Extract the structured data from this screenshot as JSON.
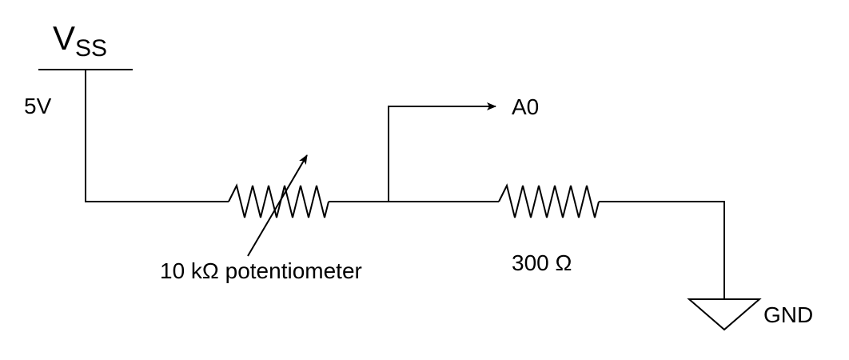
{
  "supply": {
    "symbol_main": "V",
    "symbol_sub": "SS",
    "voltage": "5V"
  },
  "potentiometer": {
    "label": "10 kΩ potentiometer"
  },
  "resistor": {
    "label": "300 Ω"
  },
  "output": {
    "label": "A0"
  },
  "ground": {
    "label": "GND"
  },
  "colors": {
    "line": "#000000",
    "background": "#ffffff"
  }
}
